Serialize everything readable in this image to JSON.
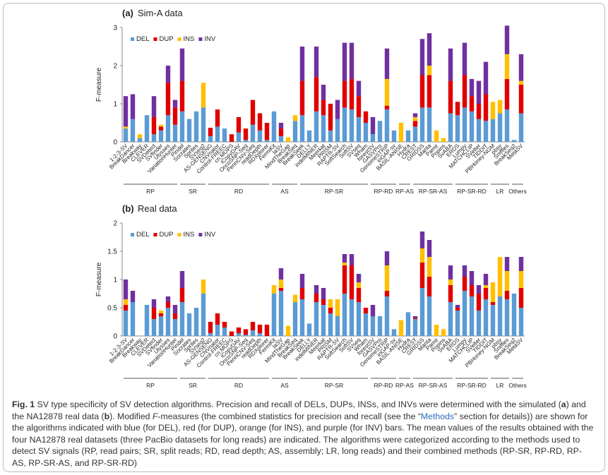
{
  "chart_data": [
    {
      "type": "bar",
      "stacked": true,
      "panel": "(a)",
      "title": "Sim-A data",
      "ylabel": "F-measure",
      "legend": "upper left",
      "categories": [
        "1-2-3-SV",
        "BreakDancer",
        "Breakway",
        "CLEVER",
        "SVDetect",
        "SVfinder",
        "Ulysses",
        "VariationHunter",
        "Pindel",
        "Socrates",
        "Sprites",
        "SVseq2",
        "AS-GENSENG",
        "CNVnator",
        "Control-FREEC",
        "cn.MOPS",
        "iCopyDAV",
        "OncoSNP-Seq",
        "PennCNV-Seq",
        "readDepth",
        "RDXplorer",
        "FermiKit",
        "laSV",
        "MindTheGap",
        "BreakSeq",
        "BreakSeek",
        "DELLY",
        "indelMINER",
        "Meerkat",
        "PRISM",
        "RAPTR-SV",
        "SoftSearch",
        "SoftSV",
        "SVseq",
        "Wham",
        "forestSV",
        "GASVPro",
        "GenomeSTRiP",
        "inGAP-sv",
        "BASIL-ANISE",
        "Hydra",
        "CREST",
        "GRIDSS",
        "Manta",
        "Pamir",
        "Popins",
        "SvABA",
        "ERDS",
        "Lumpy",
        "MATCHCLIP",
        "SVelter",
        "TIDDIT",
        "PBHoney-NGM",
        "pbsv",
        "Sniffles",
        "BreakSeq2",
        "MetaSV"
      ],
      "series": [
        {
          "name": "DEL",
          "color": "#5b9bd5",
          "values": [
            0.35,
            0.6,
            0.1,
            0.7,
            0.2,
            0.3,
            0.7,
            0.45,
            0.8,
            0.6,
            0.8,
            0.9,
            0.15,
            0.4,
            0.35,
            0,
            0.25,
            0.05,
            0.45,
            0.3,
            0.05,
            0.8,
            0.15,
            0,
            0.55,
            0.7,
            0.3,
            0.8,
            0.7,
            0.3,
            0.6,
            0.9,
            0.85,
            0.65,
            0.5,
            0.2,
            0.55,
            0.85,
            0.3,
            0,
            0.3,
            0.4,
            0.9,
            0.9,
            0,
            0,
            0.75,
            0.7,
            0.9,
            0.8,
            0.6,
            0.55,
            0.6,
            0.75,
            0.85,
            0.05,
            0.75
          ]
        },
        {
          "name": "DUP",
          "color": "#e00000",
          "values": [
            0,
            0,
            0,
            0,
            0.45,
            0.1,
            0.85,
            0.45,
            0.8,
            0,
            0,
            0,
            0.22,
            0.45,
            0,
            0.2,
            0.4,
            0.3,
            0.65,
            0.45,
            0.45,
            0,
            0.2,
            0,
            0,
            0.9,
            0,
            0.9,
            0.4,
            0.7,
            0,
            0.7,
            0.8,
            0.55,
            0.3,
            0,
            0,
            0.1,
            0,
            0,
            0,
            0.15,
            0.85,
            0.85,
            0,
            0,
            0.85,
            0.35,
            0.85,
            0.4,
            0.4,
            0.7,
            0,
            0,
            0.8,
            0,
            0.75
          ]
        },
        {
          "name": "INS",
          "color": "#ffc000",
          "values": [
            0.05,
            0,
            0.1,
            0,
            0,
            0.05,
            0,
            0,
            0,
            0,
            0,
            0.65,
            0,
            0,
            0,
            0,
            0,
            0,
            0,
            0,
            0,
            0,
            0,
            0.12,
            0.15,
            0,
            0,
            0,
            0,
            0,
            0,
            0,
            0,
            0,
            0,
            0,
            0,
            0.7,
            0,
            0.5,
            0,
            0.1,
            0,
            0.25,
            0.3,
            0.1,
            0,
            0,
            0,
            0,
            0,
            0,
            0.45,
            0.35,
            0.65,
            0,
            0.1
          ]
        },
        {
          "name": "INV",
          "color": "#7030a0",
          "values": [
            0.8,
            0.65,
            0,
            0,
            0.55,
            0,
            0.45,
            0.2,
            0.85,
            0,
            0,
            0,
            0,
            0,
            0,
            0,
            0,
            0,
            0,
            0,
            0,
            0,
            0.15,
            0,
            0,
            0.9,
            0,
            0.8,
            0.4,
            0,
            0.5,
            1.0,
            0.95,
            0.4,
            0,
            0.45,
            0,
            0.8,
            0,
            0,
            0,
            0.1,
            0.95,
            0.85,
            0,
            0,
            0.85,
            0,
            0.85,
            0.45,
            0.6,
            0.85,
            0,
            0,
            0.75,
            0,
            0.7
          ]
        }
      ],
      "ylim": [
        0,
        3
      ],
      "yticks": [
        0,
        1,
        2,
        3
      ],
      "groups": [
        {
          "name": "RP",
          "count": 8
        },
        {
          "name": "SR",
          "count": 4
        },
        {
          "name": "RD",
          "count": 9
        },
        {
          "name": "AS",
          "count": 4
        },
        {
          "name": "RP-SR",
          "count": 10
        },
        {
          "name": "RP-RD",
          "count": 4
        },
        {
          "name": "RP-AS",
          "count": 2
        },
        {
          "name": "RP-SR-AS",
          "count": 6
        },
        {
          "name": "RP-SR-RD",
          "count": 5
        },
        {
          "name": "LR",
          "count": 3
        },
        {
          "name": "Others",
          "count": 2
        }
      ]
    },
    {
      "type": "bar",
      "stacked": true,
      "panel": "(b)",
      "title": "Real data",
      "ylabel": "F-measure",
      "legend": "upper left",
      "categories": [
        "1-2-3-SV",
        "BreakDancer",
        "Breakway",
        "CLEVER",
        "SVDetect",
        "SVfinder",
        "Ulysses",
        "VariationHunter",
        "Pindel",
        "Socrates",
        "Sprites",
        "SVseq2",
        "AS-GENSENG",
        "CNVnator",
        "Control-FREEC",
        "cn.MOPS",
        "iCopyDAV",
        "OncoSNP-Seq",
        "PennCNV-Seq",
        "readDepth",
        "RDXplorer",
        "FermiKit",
        "laSV",
        "MindTheGap",
        "BreakSeq",
        "BreakSeek",
        "DELLY",
        "indelMINER",
        "Meerkat",
        "PRISM",
        "RAPTR-SV",
        "SoftSearch",
        "SoftSV",
        "SVseq",
        "Wham",
        "forestSV",
        "GASVPro",
        "GenomeSTRiP",
        "inGAP-sv",
        "BASIL-ANISE",
        "Hydra",
        "CREST",
        "GRIDSS",
        "Manta",
        "Pamir",
        "Popins",
        "SvABA",
        "ERDS",
        "Lumpy",
        "MATCHCLIP",
        "SVelter",
        "TIDDIT",
        "PBHoney-NGM",
        "pbsv",
        "Sniffles",
        "BreakSeq2",
        "MetaSV"
      ],
      "series": [
        {
          "name": "DEL",
          "color": "#5b9bd5",
          "values": [
            0.45,
            0.6,
            0,
            0.55,
            0.3,
            0.35,
            0.5,
            0.3,
            0.6,
            0.4,
            0.5,
            0.75,
            0.05,
            0.2,
            0.15,
            0,
            0.05,
            0.02,
            0.1,
            0.05,
            0,
            0.75,
            0.8,
            0,
            0.6,
            0.65,
            0.22,
            0.6,
            0.55,
            0.4,
            0.35,
            0.75,
            0.65,
            0.6,
            0.4,
            0.35,
            0.35,
            0.7,
            0.12,
            0,
            0.42,
            0.3,
            0.85,
            0.7,
            0,
            0,
            0.6,
            0.45,
            0.8,
            0.7,
            0.45,
            0.65,
            0.55,
            0.7,
            0.65,
            0.75,
            0.5
          ]
        },
        {
          "name": "DUP",
          "color": "#e00000",
          "values": [
            0.1,
            0,
            0,
            0,
            0.2,
            0.05,
            0.1,
            0.1,
            0.25,
            0,
            0,
            0,
            0.2,
            0.2,
            0.1,
            0.08,
            0.1,
            0.1,
            0.15,
            0.15,
            0.2,
            0,
            0.05,
            0,
            0,
            0.2,
            0,
            0.15,
            0.1,
            0.1,
            0,
            0.5,
            0.6,
            0.25,
            0.1,
            0,
            0,
            0.1,
            0,
            0,
            0,
            0.02,
            0.45,
            0.35,
            0,
            0,
            0.3,
            0.05,
            0.25,
            0.2,
            0.3,
            0.2,
            0.05,
            0,
            0.15,
            0,
            0.35
          ]
        },
        {
          "name": "INS",
          "color": "#ffc000",
          "values": [
            0.1,
            0,
            0,
            0,
            0,
            0.05,
            0,
            0,
            0,
            0,
            0,
            0.25,
            0,
            0,
            0,
            0,
            0,
            0,
            0,
            0,
            0,
            0.15,
            0.15,
            0.18,
            0.13,
            0,
            0,
            0,
            0,
            0.15,
            0.3,
            0.05,
            0,
            0.1,
            0,
            0,
            0,
            0.45,
            0,
            0.28,
            0,
            0,
            0.25,
            0.35,
            0.2,
            0.12,
            0.1,
            0,
            0,
            0,
            0,
            0.05,
            0.35,
            0.7,
            0.35,
            0,
            0.3
          ]
        },
        {
          "name": "INV",
          "color": "#7030a0",
          "values": [
            0.35,
            0.2,
            0,
            0,
            0.15,
            0,
            0.1,
            0.15,
            0.3,
            0,
            0,
            0,
            0,
            0,
            0,
            0,
            0,
            0,
            0,
            0,
            0,
            0,
            0.2,
            0,
            0,
            0.25,
            0,
            0.15,
            0.2,
            0,
            0,
            0.15,
            0.2,
            0.15,
            0,
            0.2,
            0,
            0.25,
            0,
            0,
            0,
            0.03,
            0.3,
            0.3,
            0,
            0,
            0.25,
            0.05,
            0.2,
            0.25,
            0.15,
            0.2,
            0,
            0,
            0.25,
            0,
            0.25
          ]
        }
      ],
      "ylim": [
        0,
        2
      ],
      "yticks": [
        0,
        0.5,
        1,
        1.5,
        2
      ],
      "groups": [
        {
          "name": "RP",
          "count": 8
        },
        {
          "name": "SR",
          "count": 4
        },
        {
          "name": "RD",
          "count": 9
        },
        {
          "name": "AS",
          "count": 4
        },
        {
          "name": "RP-SR",
          "count": 10
        },
        {
          "name": "RP-RD",
          "count": 4
        },
        {
          "name": "RP-AS",
          "count": 2
        },
        {
          "name": "RP-SR-AS",
          "count": 6
        },
        {
          "name": "RP-SR-RD",
          "count": 5
        },
        {
          "name": "LR",
          "count": 3
        },
        {
          "name": "Others",
          "count": 2
        }
      ]
    }
  ],
  "caption": {
    "segments": [
      {
        "text": "Fig. 1",
        "style": "bold"
      },
      {
        "text": " SV type specificity of SV detection algorithms. Precision and recall of DELs, DUPs, INSs, and INVs were determined with the simulated (",
        "style": "normal"
      },
      {
        "text": "a",
        "style": "bold"
      },
      {
        "text": ") and the NA12878 real data (",
        "style": "normal"
      },
      {
        "text": "b",
        "style": "bold"
      },
      {
        "text": "). Modified ",
        "style": "normal"
      },
      {
        "text": "F",
        "style": "italic"
      },
      {
        "text": "-measures (the combined statistics for precision and recall (see the “",
        "style": "normal"
      },
      {
        "text": "Methods",
        "style": "link"
      },
      {
        "text": "” section for details)) are shown for the algorithms indicated with blue (for DEL), red (for DUP), orange (for INS), and purple (for INV) bars. The mean values of the results obtained with the four NA12878 real datasets (three PacBio datasets for long reads) are indicated. The algorithms were categorized according to the methods used to detect SV signals (RP, read pairs; SR, split reads; RD, read depth; AS, assembly; LR, long reads) and their combined methods (RP-SR, RP-RD, RP-AS, RP-SR-AS, and RP-SR-RD)",
        "style": "normal"
      }
    ]
  }
}
